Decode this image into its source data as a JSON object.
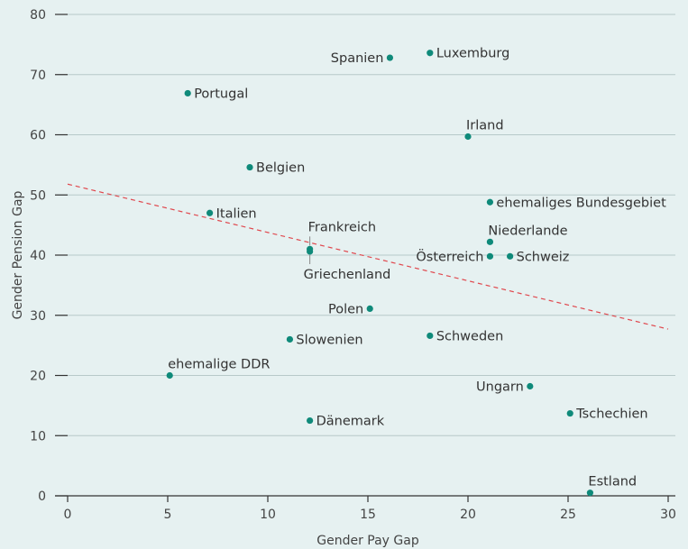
{
  "chart_data": {
    "type": "scatter",
    "title": "",
    "xlabel": "Gender Pay Gap",
    "ylabel": "Gender Pension Gap",
    "xlim": [
      0,
      30
    ],
    "ylim": [
      0,
      80
    ],
    "xticks": [
      0,
      5,
      10,
      15,
      20,
      25,
      30
    ],
    "yticks": [
      0,
      10,
      20,
      30,
      40,
      50,
      60,
      70,
      80
    ],
    "grid": "horizontal",
    "point_color": "#0f8a7a",
    "trend_color": "#e0484e",
    "trendline": {
      "x": [
        0,
        30
      ],
      "y": [
        51.8,
        27.7
      ]
    },
    "points": [
      {
        "label": "Spanien",
        "x": 16.1,
        "y": 72.8,
        "label_pos": "left"
      },
      {
        "label": "Luxemburg",
        "x": 18.1,
        "y": 73.6,
        "label_pos": "right"
      },
      {
        "label": "Portugal",
        "x": 6.0,
        "y": 66.9,
        "label_pos": "right"
      },
      {
        "label": "Irland",
        "x": 20.0,
        "y": 59.7,
        "label_pos": "above"
      },
      {
        "label": "Belgien",
        "x": 9.1,
        "y": 54.6,
        "label_pos": "right"
      },
      {
        "label": "ehemaliges Bundesgebiet",
        "x": 21.1,
        "y": 48.8,
        "label_pos": "right"
      },
      {
        "label": "Italien",
        "x": 7.1,
        "y": 47.0,
        "label_pos": "right"
      },
      {
        "label": "Frankreich",
        "x": 12.1,
        "y": 41.0,
        "label_pos": "above-leader"
      },
      {
        "label": "Griechenland",
        "x": 12.1,
        "y": 40.6,
        "label_pos": "below-leader"
      },
      {
        "label": "Niederlande",
        "x": 21.1,
        "y": 42.2,
        "label_pos": "above"
      },
      {
        "label": "Österreich",
        "x": 21.1,
        "y": 39.8,
        "label_pos": "left"
      },
      {
        "label": "Schweiz",
        "x": 22.1,
        "y": 39.8,
        "label_pos": "right"
      },
      {
        "label": "Polen",
        "x": 15.1,
        "y": 31.1,
        "label_pos": "left"
      },
      {
        "label": "Slowenien",
        "x": 11.1,
        "y": 26.0,
        "label_pos": "right"
      },
      {
        "label": "Schweden",
        "x": 18.1,
        "y": 26.6,
        "label_pos": "right"
      },
      {
        "label": "ehemalige DDR",
        "x": 5.1,
        "y": 20.0,
        "label_pos": "above"
      },
      {
        "label": "Ungarn",
        "x": 23.1,
        "y": 18.2,
        "label_pos": "left"
      },
      {
        "label": "Dänemark",
        "x": 12.1,
        "y": 12.5,
        "label_pos": "right"
      },
      {
        "label": "Tschechien",
        "x": 25.1,
        "y": 13.7,
        "label_pos": "right"
      },
      {
        "label": "Estland",
        "x": 26.1,
        "y": 0.5,
        "label_pos": "above"
      }
    ]
  }
}
